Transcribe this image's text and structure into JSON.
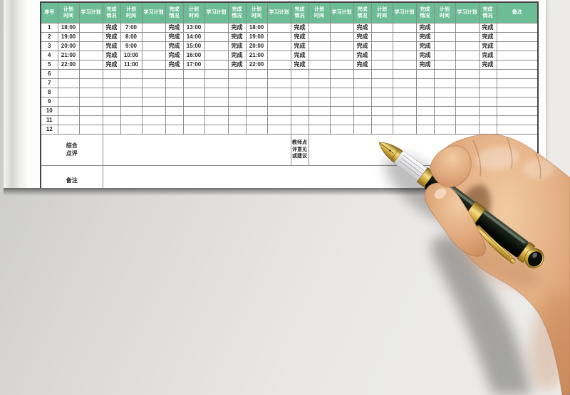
{
  "document": {
    "table": {
      "columns": {
        "index_header": "序号",
        "group_headers": {
          "plan_time": "计划\n时间",
          "study_plan": "学习计划",
          "completion": "完成\n情况"
        },
        "group_count": 7,
        "remark_header": "备注"
      },
      "rows": [
        {
          "no": "1",
          "cells": [
            [
              "18:00",
              "",
              "完成"
            ],
            [
              "7:00",
              "",
              "完成"
            ],
            [
              "13:00",
              "",
              "完成"
            ],
            [
              "18:00",
              "",
              "完成"
            ],
            [
              "",
              "",
              "完成"
            ],
            [
              "",
              "",
              "完成"
            ],
            [
              "",
              "",
              "完成"
            ]
          ],
          "remark": ""
        },
        {
          "no": "2",
          "cells": [
            [
              "19:00",
              "",
              "完成"
            ],
            [
              "8:00",
              "",
              "完成"
            ],
            [
              "14:00",
              "",
              "完成"
            ],
            [
              "19:00",
              "",
              "完成"
            ],
            [
              "",
              "",
              "完成"
            ],
            [
              "",
              "",
              "完成"
            ],
            [
              "",
              "",
              "完成"
            ]
          ],
          "remark": ""
        },
        {
          "no": "3",
          "cells": [
            [
              "20:00",
              "",
              "完成"
            ],
            [
              "9:00",
              "",
              "完成"
            ],
            [
              "15:00",
              "",
              "完成"
            ],
            [
              "20:00",
              "",
              "完成"
            ],
            [
              "",
              "",
              "完成"
            ],
            [
              "",
              "",
              "完成"
            ],
            [
              "",
              "",
              "完成"
            ]
          ],
          "remark": ""
        },
        {
          "no": "4",
          "cells": [
            [
              "21:00",
              "",
              "完成"
            ],
            [
              "10:00",
              "",
              "完成"
            ],
            [
              "16:00",
              "",
              "完成"
            ],
            [
              "21:00",
              "",
              "完成"
            ],
            [
              "",
              "",
              "完成"
            ],
            [
              "",
              "",
              "完成"
            ],
            [
              "",
              "",
              "完成"
            ]
          ],
          "remark": ""
        },
        {
          "no": "5",
          "cells": [
            [
              "22:00",
              "",
              "完成"
            ],
            [
              "11:00",
              "",
              "完成"
            ],
            [
              "17:00",
              "",
              "完成"
            ],
            [
              "22:00",
              "",
              "完成"
            ],
            [
              "",
              "",
              "完成"
            ],
            [
              "",
              "",
              "完成"
            ],
            [
              "",
              "",
              "完成"
            ]
          ],
          "remark": ""
        },
        {
          "no": "6",
          "cells": [
            [
              "",
              "",
              ""
            ],
            [
              "",
              "",
              ""
            ],
            [
              "",
              "",
              ""
            ],
            [
              "",
              "",
              ""
            ],
            [
              "",
              "",
              ""
            ],
            [
              "",
              "",
              ""
            ],
            [
              "",
              "",
              ""
            ]
          ],
          "remark": ""
        },
        {
          "no": "7",
          "cells": [
            [
              "",
              "",
              ""
            ],
            [
              "",
              "",
              ""
            ],
            [
              "",
              "",
              ""
            ],
            [
              "",
              "",
              ""
            ],
            [
              "",
              "",
              ""
            ],
            [
              "",
              "",
              ""
            ],
            [
              "",
              "",
              ""
            ]
          ],
          "remark": ""
        },
        {
          "no": "8",
          "cells": [
            [
              "",
              "",
              ""
            ],
            [
              "",
              "",
              ""
            ],
            [
              "",
              "",
              ""
            ],
            [
              "",
              "",
              ""
            ],
            [
              "",
              "",
              ""
            ],
            [
              "",
              "",
              ""
            ],
            [
              "",
              "",
              ""
            ]
          ],
          "remark": ""
        },
        {
          "no": "9",
          "cells": [
            [
              "",
              "",
              ""
            ],
            [
              "",
              "",
              ""
            ],
            [
              "",
              "",
              ""
            ],
            [
              "",
              "",
              ""
            ],
            [
              "",
              "",
              ""
            ],
            [
              "",
              "",
              ""
            ],
            [
              "",
              "",
              ""
            ]
          ],
          "remark": ""
        },
        {
          "no": "10",
          "cells": [
            [
              "",
              "",
              ""
            ],
            [
              "",
              "",
              ""
            ],
            [
              "",
              "",
              ""
            ],
            [
              "",
              "",
              ""
            ],
            [
              "",
              "",
              ""
            ],
            [
              "",
              "",
              ""
            ],
            [
              "",
              "",
              ""
            ]
          ],
          "remark": ""
        },
        {
          "no": "11",
          "cells": [
            [
              "",
              "",
              ""
            ],
            [
              "",
              "",
              ""
            ],
            [
              "",
              "",
              ""
            ],
            [
              "",
              "",
              ""
            ],
            [
              "",
              "",
              ""
            ],
            [
              "",
              "",
              ""
            ],
            [
              "",
              "",
              ""
            ]
          ],
          "remark": ""
        },
        {
          "no": "12",
          "cells": [
            [
              "",
              "",
              ""
            ],
            [
              "",
              "",
              ""
            ],
            [
              "",
              "",
              ""
            ],
            [
              "",
              "",
              ""
            ],
            [
              "",
              "",
              ""
            ],
            [
              "",
              "",
              ""
            ],
            [
              "",
              "",
              ""
            ]
          ],
          "remark": ""
        }
      ],
      "summary_row": {
        "label": "综合\n点评",
        "comment": "",
        "teacher_label": "教师点\n评意见\n或建议",
        "teacher_comment": ""
      },
      "notes_row": {
        "label": "备注",
        "value": ""
      }
    },
    "colors": {
      "header_bg": "#6cbc96",
      "header_text": "#ffffff",
      "grid_line": "#8c8c8c",
      "table_border": "#454545",
      "cell_text": "#262626"
    },
    "photo": {
      "label": "hand holding fountain pen"
    }
  }
}
